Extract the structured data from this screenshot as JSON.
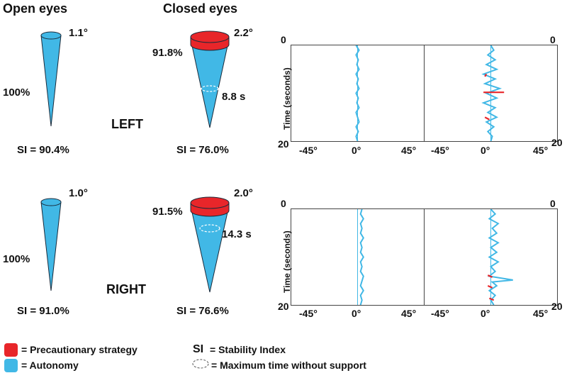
{
  "headers": {
    "open": "Open eyes",
    "closed": "Closed eyes"
  },
  "sides": {
    "left": "LEFT",
    "right": "RIGHT"
  },
  "left": {
    "open_angle": "1.1°",
    "open_pct": "100%",
    "open_si": "SI = 90.4%",
    "closed_angle": "2.2°",
    "closed_pct": "91.8%",
    "closed_time": "8.8 s",
    "closed_si": "SI = 76.0%"
  },
  "right": {
    "open_angle": "1.0°",
    "open_pct": "100%",
    "open_si": "SI = 91.0%",
    "closed_angle": "2.0°",
    "closed_pct": "91.5%",
    "closed_time": "14.3 s",
    "closed_si": "SI = 76.6%"
  },
  "axes": {
    "ylabel": "Time (seconds)",
    "y_top": "0",
    "y_bottom": "20",
    "x_ticks": [
      "-45°",
      "0°",
      "45°"
    ]
  },
  "legend": {
    "precautionary": "= Precautionary strategy",
    "autonomy": "= Autonomy",
    "si_key": "SI",
    "si_text": "= Stability Index",
    "max_time": "= Maximum time without support"
  },
  "colors": {
    "precautionary": "#e8262a",
    "autonomy": "#41b8e6",
    "frame": "#444444"
  },
  "chart_data": [
    {
      "type": "line",
      "title": "",
      "xlabel": "",
      "ylabel": "Time (seconds)",
      "xlim": [
        -45,
        45
      ],
      "ylim": [
        0,
        20
      ],
      "condition": "LEFT open eyes",
      "series": [
        {
          "color": "#41b8e6",
          "points": [
            [
              -1,
              0
            ],
            [
              1,
              1
            ],
            [
              -1,
              2
            ],
            [
              0.5,
              3
            ],
            [
              -0.5,
              4
            ],
            [
              1,
              5
            ],
            [
              -1,
              6
            ],
            [
              0.5,
              7
            ],
            [
              -0.5,
              8
            ],
            [
              1,
              9
            ],
            [
              -1,
              10
            ],
            [
              0.5,
              11
            ],
            [
              -0.5,
              12
            ],
            [
              1,
              13
            ],
            [
              -1,
              14
            ],
            [
              0,
              15
            ],
            [
              1,
              16
            ],
            [
              -1,
              17
            ],
            [
              0.5,
              18
            ],
            [
              -1,
              19
            ],
            [
              0,
              20
            ]
          ]
        }
      ]
    },
    {
      "type": "line",
      "title": "",
      "xlabel": "",
      "ylabel": "",
      "xlim": [
        -45,
        45
      ],
      "ylim": [
        0,
        20
      ],
      "condition": "LEFT closed eyes",
      "series": [
        {
          "color": "#41b8e6",
          "points": [
            [
              0,
              0
            ],
            [
              2,
              1
            ],
            [
              -2,
              2
            ],
            [
              3,
              3
            ],
            [
              -3,
              4
            ],
            [
              4,
              5
            ],
            [
              -5,
              6
            ],
            [
              3,
              7
            ],
            [
              -4,
              8
            ],
            [
              6,
              9
            ],
            [
              -3,
              10
            ],
            [
              4,
              11
            ],
            [
              -5,
              12
            ],
            [
              3,
              13
            ],
            [
              -2,
              14
            ],
            [
              4,
              15
            ],
            [
              -3,
              16
            ],
            [
              2,
              17
            ],
            [
              -2,
              18
            ],
            [
              1,
              19
            ],
            [
              0,
              20
            ]
          ]
        },
        {
          "color": "#e8262a",
          "points": [
            [
              -3,
              6
            ],
            [
              -4,
              6.5
            ]
          ]
        },
        {
          "color": "#e8262a",
          "points": [
            [
              -5,
              9.8
            ],
            [
              9,
              9.8
            ]
          ]
        },
        {
          "color": "#e8262a",
          "points": [
            [
              -4,
              15
            ],
            [
              -1,
              15.5
            ]
          ]
        }
      ]
    },
    {
      "type": "line",
      "title": "",
      "xlabel": "",
      "ylabel": "Time (seconds)",
      "xlim": [
        -45,
        45
      ],
      "ylim": [
        0,
        20
      ],
      "condition": "RIGHT open eyes",
      "series": [
        {
          "color": "#41b8e6",
          "points": [
            [
              3,
              0
            ],
            [
              2,
              1
            ],
            [
              4,
              2
            ],
            [
              2,
              3
            ],
            [
              3,
              4
            ],
            [
              2,
              5
            ],
            [
              4,
              6
            ],
            [
              2,
              7
            ],
            [
              3,
              8
            ],
            [
              2,
              9
            ],
            [
              4,
              10
            ],
            [
              2,
              11
            ],
            [
              3,
              12
            ],
            [
              2,
              13
            ],
            [
              4,
              14
            ],
            [
              3,
              15
            ],
            [
              2,
              16
            ],
            [
              4,
              17
            ],
            [
              2,
              18
            ],
            [
              3,
              19
            ],
            [
              2,
              20
            ]
          ]
        }
      ]
    },
    {
      "type": "line",
      "title": "",
      "xlabel": "",
      "ylabel": "",
      "xlim": [
        -45,
        45
      ],
      "ylim": [
        0,
        20
      ],
      "condition": "RIGHT closed eyes",
      "series": [
        {
          "color": "#41b8e6",
          "points": [
            [
              0,
              0
            ],
            [
              3,
              1
            ],
            [
              -1,
              2
            ],
            [
              5,
              3
            ],
            [
              1,
              4
            ],
            [
              4,
              5
            ],
            [
              -1,
              6
            ],
            [
              5,
              7
            ],
            [
              0,
              8
            ],
            [
              4,
              9
            ],
            [
              -1,
              10
            ],
            [
              5,
              11
            ],
            [
              0,
              12
            ],
            [
              3,
              13
            ],
            [
              -1,
              14
            ],
            [
              15,
              14.8
            ],
            [
              1,
              15.2
            ],
            [
              4,
              16
            ],
            [
              -1,
              17
            ],
            [
              3,
              18
            ],
            [
              0,
              19
            ],
            [
              2,
              20
            ]
          ]
        },
        {
          "color": "#e8262a",
          "points": [
            [
              -2,
              13.8
            ],
            [
              1,
              14.2
            ]
          ]
        },
        {
          "color": "#e8262a",
          "points": [
            [
              -2,
              16
            ],
            [
              1,
              16.4
            ]
          ]
        },
        {
          "color": "#e8262a",
          "points": [
            [
              -1,
              18.6
            ],
            [
              2,
              19
            ]
          ]
        }
      ]
    }
  ]
}
